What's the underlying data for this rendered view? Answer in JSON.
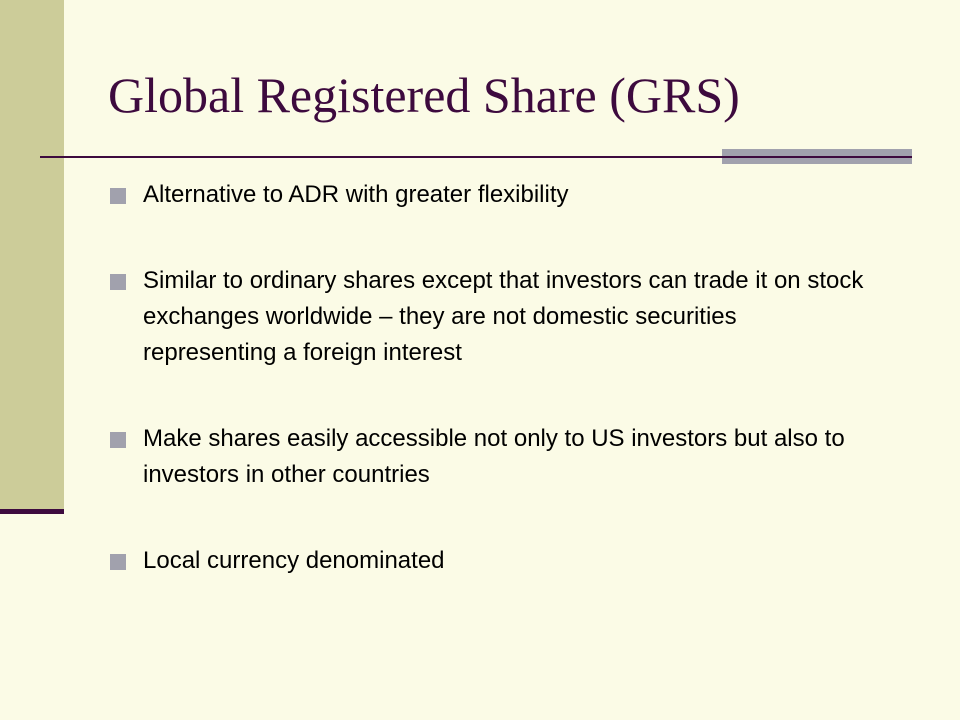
{
  "slide": {
    "title": "Global Registered Share (GRS)",
    "bullets": [
      "Alternative to ADR with greater flexibility",
      "Similar to ordinary shares except that investors can trade it on stock exchanges worldwide – they are not domestic securities representing a foreign interest",
      "Make shares easily accessible not only to US investors but also to investors in other countries",
      "Local currency denominated"
    ]
  },
  "colors": {
    "background": "#fbfbe6",
    "sidebar": "#cccc99",
    "title": "#3d0a3e",
    "accent": "#a1a1ad",
    "text": "#000000"
  }
}
